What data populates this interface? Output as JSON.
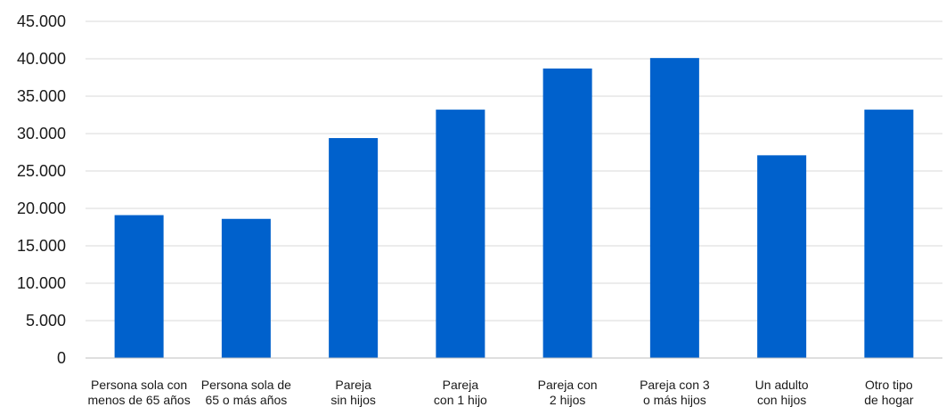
{
  "chart_data": {
    "type": "bar",
    "title": "",
    "xlabel": "",
    "ylabel": "",
    "categories": [
      [
        "Persona sola con",
        "menos de 65 años"
      ],
      [
        "Persona sola de",
        "65 o más años"
      ],
      [
        "Pareja",
        "sin hijos"
      ],
      [
        "Pareja",
        "con 1 hijo"
      ],
      [
        "Pareja con",
        "2 hijos"
      ],
      [
        "Pareja con 3",
        "o más hijos"
      ],
      [
        "Un adulto",
        "con hijos"
      ],
      [
        "Otro tipo",
        "de hogar"
      ]
    ],
    "values": [
      19100,
      18600,
      29400,
      33200,
      38700,
      40100,
      27100,
      33200
    ],
    "ylim": [
      0,
      45000
    ],
    "yticks": [
      0,
      5000,
      10000,
      15000,
      20000,
      25000,
      30000,
      35000,
      40000,
      45000
    ],
    "ytick_labels": [
      "0",
      "5.000",
      "10.000",
      "15.000",
      "20.000",
      "25.000",
      "30.000",
      "35.000",
      "40.000",
      "45.000"
    ],
    "grid": true,
    "legend": "none",
    "colors": {
      "bar": "#0061cc",
      "grid": "#d9d9d9",
      "axis": "#bfbfbf"
    }
  }
}
